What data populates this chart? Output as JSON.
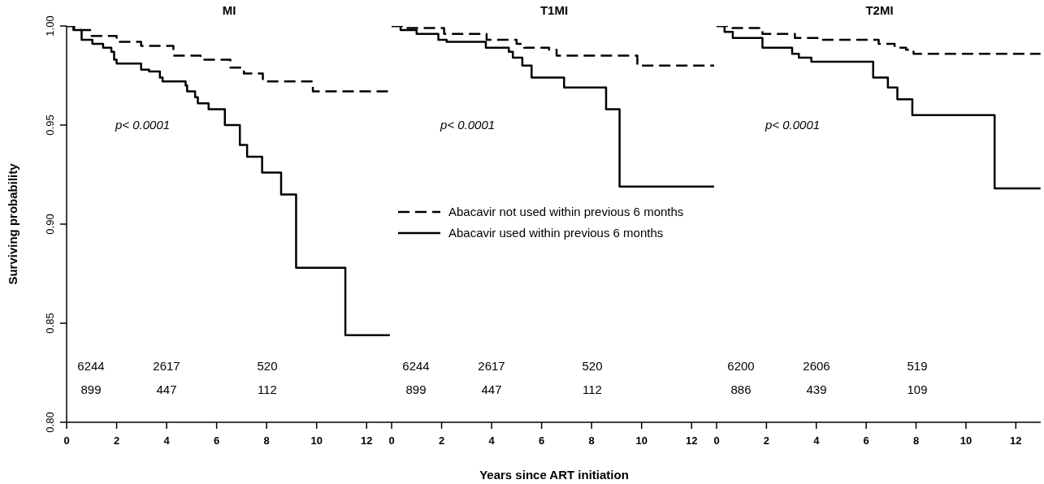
{
  "chart_data": [
    {
      "type": "step",
      "title": "MI",
      "ylabel": "Surviving probability",
      "xlim": [
        0,
        13
      ],
      "xticks": [
        0,
        2,
        4,
        6,
        8,
        10,
        12
      ],
      "ylim": [
        0.8,
        1.0
      ],
      "yticks": [
        {
          "value": 0.8,
          "label": "0.80"
        },
        {
          "value": 0.85,
          "label": "0.85"
        },
        {
          "value": 0.9,
          "label": "0.90"
        },
        {
          "value": 0.95,
          "label": "0.95"
        },
        {
          "value": 1.0,
          "label": "1.00"
        }
      ],
      "grid": false,
      "legend": false,
      "series": [
        {
          "color": "#000000",
          "line_style": "dashed",
          "x": [
            0,
            0.3,
            1,
            2,
            2.98,
            4.27,
            5.36,
            6.55,
            7.09,
            7.85,
            9.85,
            12.93
          ],
          "values": [
            1,
            0.998,
            0.995,
            0.992,
            0.99,
            0.985,
            0.983,
            0.979,
            0.976,
            0.972,
            0.967,
            0.967
          ]
        },
        {
          "color": "#000000",
          "line_style": "solid",
          "x": [
            0,
            0.27,
            0.6,
            1.03,
            1.46,
            1.79,
            1.9,
            2.0,
            2.98,
            3.3,
            3.73,
            3.84,
            4.76,
            4.82,
            5.14,
            5.25,
            5.68,
            6.33,
            6.93,
            7.22,
            7.82,
            8.58,
            9.18,
            11.15,
            12.93
          ],
          "values": [
            1,
            0.998,
            0.993,
            0.991,
            0.989,
            0.987,
            0.983,
            0.981,
            0.978,
            0.977,
            0.974,
            0.972,
            0.97,
            0.967,
            0.964,
            0.961,
            0.958,
            0.95,
            0.94,
            0.934,
            0.926,
            0.915,
            0.878,
            0.844,
            0.844
          ]
        }
      ],
      "annotations": [
        "p< 0.0001",
        "6244",
        "2617",
        "520",
        "899",
        "447",
        "112"
      ]
    },
    {
      "type": "step",
      "title": "T1MI",
      "xlabel": "Years since ART initiation",
      "xlim": [
        0,
        13
      ],
      "xticks": [
        0,
        2,
        4,
        6,
        8,
        10,
        12
      ],
      "ylim": [
        0.8,
        1.0
      ],
      "tick_labels": "x",
      "grid": false,
      "legend": "center left",
      "series": [
        {
          "name": "Abacavir not used within previous 6 months",
          "color": "#000000",
          "line_style": "dashed",
          "x": [
            0,
            0.5,
            2.1,
            3.8,
            5.0,
            5.3,
            6.3,
            6.6,
            9.83,
            12.9
          ],
          "values": [
            1,
            0.999,
            0.996,
            0.993,
            0.991,
            0.989,
            0.988,
            0.985,
            0.98,
            0.98
          ]
        },
        {
          "name": "Abacavir used within previous 6 months",
          "color": "#000000",
          "line_style": "solid",
          "x": [
            0,
            0.36,
            1.0,
            1.87,
            2.2,
            3.77,
            4.69,
            4.85,
            5.23,
            5.6,
            6.9,
            8.58,
            9.12,
            12.9
          ],
          "values": [
            1,
            0.998,
            0.996,
            0.993,
            0.992,
            0.989,
            0.987,
            0.984,
            0.98,
            0.974,
            0.969,
            0.958,
            0.919,
            0.919
          ]
        }
      ],
      "annotations": [
        "p< 0.0001",
        "6244",
        "2617",
        "520",
        "899",
        "447",
        "112"
      ]
    },
    {
      "type": "step",
      "title": "T2MI",
      "xlim": [
        0,
        13
      ],
      "xticks": [
        0,
        2,
        4,
        6,
        8,
        10,
        12
      ],
      "ylim": [
        0.8,
        1.0
      ],
      "tick_labels": "x",
      "grid": false,
      "legend": false,
      "series": [
        {
          "color": "#000000",
          "line_style": "dashed",
          "x": [
            0,
            0.5,
            1.84,
            3.14,
            4.22,
            6.5,
            7.14,
            7.6,
            7.9,
            12.99
          ],
          "values": [
            1,
            0.999,
            0.996,
            0.994,
            0.993,
            0.991,
            0.989,
            0.988,
            0.986,
            0.986
          ]
        },
        {
          "color": "#000000",
          "line_style": "solid",
          "x": [
            0,
            0.32,
            0.65,
            1.84,
            3.03,
            3.3,
            3.8,
            6.28,
            6.87,
            7.25,
            7.85,
            11.15,
            12.99
          ],
          "values": [
            1,
            0.997,
            0.994,
            0.989,
            0.986,
            0.984,
            0.982,
            0.974,
            0.969,
            0.963,
            0.955,
            0.918,
            0.918
          ]
        }
      ],
      "annotations": [
        "p< 0.0001",
        "6200",
        "2606",
        "519",
        "886",
        "439",
        "109"
      ]
    }
  ]
}
